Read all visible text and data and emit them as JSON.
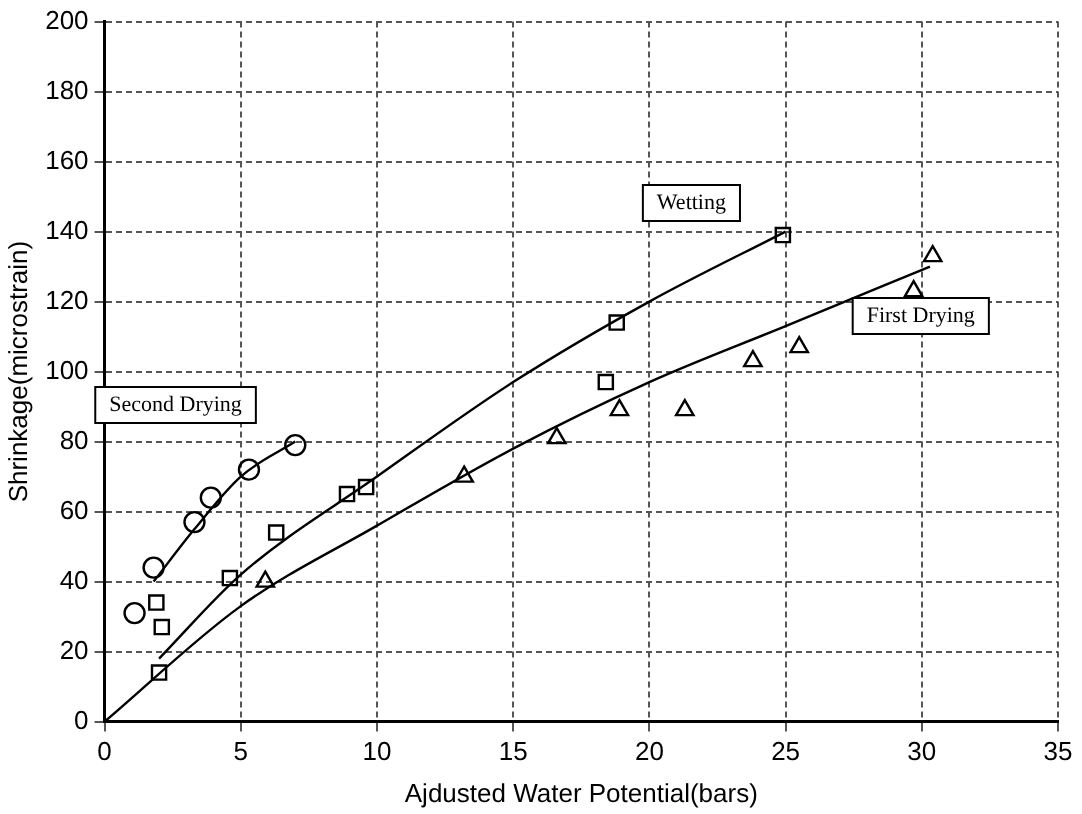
{
  "chart_data": {
    "type": "scatter",
    "xlabel": "Ajdusted Water Potential(bars)",
    "ylabel": "Shrinkage(microstrain)",
    "xlim": [
      0,
      35
    ],
    "ylim": [
      0,
      200
    ],
    "xticks": [
      0,
      5,
      10,
      15,
      20,
      25,
      30,
      35
    ],
    "yticks": [
      0,
      20,
      40,
      60,
      80,
      100,
      120,
      140,
      160,
      180,
      200
    ],
    "grid": true,
    "legend": false,
    "series": [
      {
        "name": "Second Drying",
        "color": "#000000",
        "marker": "circle",
        "x": [
          1.1,
          1.8,
          3.3,
          3.9,
          5.3,
          7.0
        ],
        "values": [
          31,
          44,
          57,
          64,
          72,
          79
        ]
      },
      {
        "name": "Wetting",
        "color": "#000000",
        "marker": "square",
        "x": [
          2.0,
          1.9,
          2.1,
          4.6,
          6.3,
          8.9,
          9.6,
          18.4,
          18.8,
          24.9
        ],
        "values": [
          14,
          34,
          27,
          41,
          54,
          65,
          67,
          97,
          114,
          139
        ]
      },
      {
        "name": "First Drying",
        "color": "#000000",
        "marker": "triangle",
        "x": [
          5.9,
          13.2,
          16.6,
          18.9,
          21.3,
          23.8,
          25.5,
          29.7,
          30.4
        ],
        "values": [
          40,
          70,
          81,
          89,
          89,
          103,
          107,
          123,
          133
        ]
      },
      {
        "type": "line",
        "color": "#000000",
        "marker": "none",
        "x": [
          1.8,
          3.3,
          5,
          7
        ],
        "values": [
          40,
          55,
          70,
          80
        ]
      },
      {
        "type": "line",
        "color": "#000000",
        "marker": "none",
        "x": [
          2,
          5,
          10,
          15,
          20,
          25
        ],
        "values": [
          18,
          42,
          70,
          97,
          120,
          140
        ]
      },
      {
        "type": "line",
        "color": "#000000",
        "marker": "none",
        "x": [
          0,
          5,
          10,
          15,
          20,
          25,
          30.3
        ],
        "values": [
          0,
          33,
          56,
          78,
          97,
          113,
          130
        ]
      }
    ]
  }
}
